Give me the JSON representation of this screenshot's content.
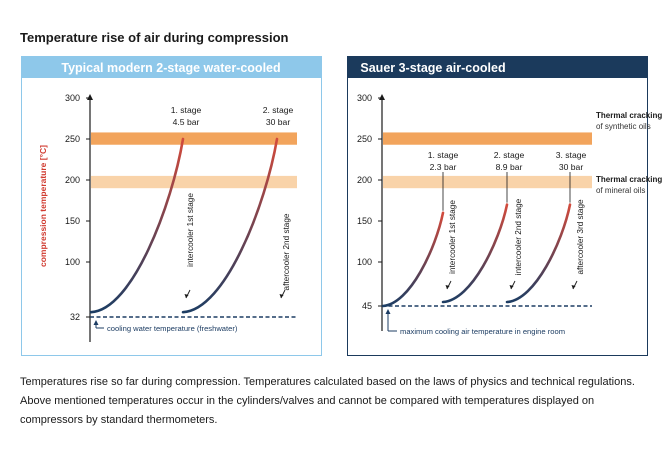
{
  "title": "Temperature rise of air during compression",
  "caption": "Temperatures rise so far during compression. Temperatures calculated based on the laws of physics and technical regulations. Above mentioned temperatures occur in the cylinders/valves and cannot be compared with temperatures displayed on compressors by standard thermometers.",
  "colors": {
    "left_header": "#8ec8ea",
    "right_header": "#1b3a5c",
    "band_dark": "#f2a45c",
    "band_light": "#f9d3a9",
    "curve_hot": "#d24a3c",
    "curve_cold": "#1d3d63",
    "ylabel": "#d03a2f"
  },
  "chart_data": [
    {
      "type": "line",
      "title": "Typical modern 2-stage water-cooled",
      "ylabel": "compression temperature [°C]",
      "ylim": [
        32,
        300
      ],
      "yticks": [
        "300",
        "250",
        "200",
        "150",
        "100",
        "32"
      ],
      "bands": [
        {
          "from": 243,
          "to": 258,
          "shade": "dark"
        },
        {
          "from": 190,
          "to": 205,
          "shade": "light"
        }
      ],
      "baseline": {
        "value": 32,
        "label": "cooling water temperature (freshwater)"
      },
      "stages": [
        {
          "name": "1. stage",
          "pressure": "4.5 bar",
          "start": 38,
          "peak": 250,
          "cool_to": 38,
          "cooler_label": "intercooler 1st stage"
        },
        {
          "name": "2. stage",
          "pressure": "30 bar",
          "start": 38,
          "peak": 250,
          "cool_to": 38,
          "cooler_label": "aftercooler 2nd stage"
        }
      ]
    },
    {
      "type": "line",
      "title": "Sauer 3-stage air-cooled",
      "ylim": [
        45,
        300
      ],
      "yticks": [
        "300",
        "250",
        "200",
        "150",
        "100",
        "45"
      ],
      "bands": [
        {
          "from": 243,
          "to": 258,
          "shade": "dark",
          "label_bold": "Thermal cracking",
          "label_rest": "of synthetic oils"
        },
        {
          "from": 190,
          "to": 205,
          "shade": "light",
          "label_bold": "Thermal cracking",
          "label_rest": "of mineral oils"
        }
      ],
      "baseline": {
        "value": 45,
        "label": "maximum cooling air temperature in engine room"
      },
      "stages": [
        {
          "name": "1. stage",
          "pressure": "2.3 bar",
          "start": 45,
          "peak": 160,
          "cool_to": 50,
          "cooler_label": "intercooler 1st stage"
        },
        {
          "name": "2. stage",
          "pressure": "8.9 bar",
          "start": 50,
          "peak": 170,
          "cool_to": 50,
          "cooler_label": "intercooler 2nd stage"
        },
        {
          "name": "3. stage",
          "pressure": "30 bar",
          "start": 50,
          "peak": 170,
          "cool_to": 50,
          "cooler_label": "aftercooler 3rd stage"
        }
      ]
    }
  ]
}
